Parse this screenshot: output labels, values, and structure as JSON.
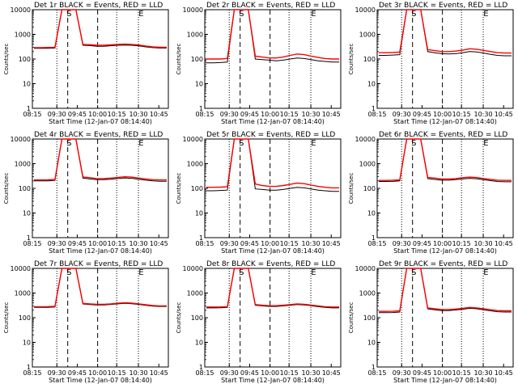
{
  "figure": {
    "colors": {
      "events": "#000000",
      "lld": "#ff0000",
      "axes": "#000000"
    }
  },
  "chart_data": [
    {
      "type": "line",
      "title": "Det 1r BLACK = Events, RED = LLD",
      "xlabel": "Start Time (12-Jan-07 08:14:40)",
      "ylabel": "Counts/sec",
      "yscale": "log",
      "ylim": [
        1,
        10000
      ],
      "xticks": [
        "08:15",
        "09:30",
        "09:45",
        "10:00",
        "10:15",
        "10:30",
        "10:45"
      ],
      "markers": [
        "S",
        "E"
      ],
      "series": [
        {
          "values": [
            270,
            270,
            272,
            280,
            10000,
            10000,
            10000,
            360,
            350,
            330,
            330,
            345,
            360,
            370,
            360,
            340,
            310,
            290,
            280,
            280
          ]
        },
        {
          "values": [
            290,
            290,
            295,
            300,
            10000,
            10000,
            10000,
            390,
            380,
            360,
            360,
            375,
            390,
            400,
            390,
            370,
            335,
            310,
            300,
            300
          ]
        }
      ]
    },
    {
      "type": "line",
      "title": "Det 2r BLACK = Events, RED = LLD",
      "xlabel": "Start Time (12-Jan-07 08:14:40)",
      "ylabel": "Counts/sec",
      "yscale": "log",
      "ylim": [
        1,
        10000
      ],
      "xticks": [
        "08:15",
        "09:30",
        "09:45",
        "10:00",
        "10:15",
        "10:30",
        "10:45"
      ],
      "markers": [
        "S",
        "E"
      ],
      "series": [
        {
          "values": [
            70,
            70,
            72,
            75,
            10000,
            10000,
            10000,
            100,
            95,
            90,
            85,
            90,
            100,
            110,
            105,
            95,
            85,
            80,
            75,
            75
          ]
        },
        {
          "values": [
            100,
            100,
            100,
            105,
            10000,
            10000,
            10000,
            130,
            120,
            110,
            110,
            120,
            140,
            160,
            150,
            130,
            115,
            105,
            100,
            100
          ]
        }
      ]
    },
    {
      "type": "line",
      "title": "Det 3r BLACK = Events, RED = LLD",
      "xlabel": "Start Time (12-Jan-07 08:14:40)",
      "ylabel": "Counts/sec",
      "yscale": "log",
      "ylim": [
        1,
        10000
      ],
      "xticks": [
        "08:15",
        "09:30",
        "09:45",
        "10:00",
        "10:15",
        "10:30",
        "10:45"
      ],
      "markers": [
        "S",
        "E"
      ],
      "series": [
        {
          "values": [
            140,
            140,
            145,
            150,
            10000,
            10000,
            10000,
            200,
            180,
            165,
            160,
            165,
            180,
            200,
            195,
            175,
            155,
            140,
            135,
            135
          ]
        },
        {
          "values": [
            180,
            180,
            185,
            190,
            10000,
            10000,
            10000,
            240,
            220,
            200,
            200,
            210,
            230,
            260,
            250,
            225,
            200,
            180,
            175,
            175
          ]
        }
      ]
    },
    {
      "type": "line",
      "title": "Det 4r BLACK = Events, RED = LLD",
      "xlabel": "Start Time (12-Jan-07 08:14:40)",
      "ylabel": "Counts/sec",
      "yscale": "log",
      "ylim": [
        1,
        10000
      ],
      "xticks": [
        "08:15",
        "09:30",
        "09:45",
        "10:00",
        "10:15",
        "10:30",
        "10:45"
      ],
      "markers": [
        "S",
        "E"
      ],
      "series": [
        {
          "values": [
            200,
            200,
            202,
            210,
            10000,
            10000,
            10000,
            260,
            240,
            225,
            225,
            235,
            250,
            265,
            255,
            235,
            215,
            200,
            195,
            195
          ]
        },
        {
          "values": [
            220,
            220,
            222,
            230,
            10000,
            10000,
            10000,
            290,
            270,
            250,
            250,
            260,
            280,
            295,
            285,
            260,
            240,
            225,
            220,
            220
          ]
        }
      ]
    },
    {
      "type": "line",
      "title": "Det 5r BLACK = Events, RED = LLD",
      "xlabel": "Start Time (12-Jan-07 08:14:40)",
      "ylabel": "Counts/sec",
      "yscale": "log",
      "ylim": [
        1,
        10000
      ],
      "xticks": [
        "08:15",
        "09:30",
        "09:45",
        "10:00",
        "10:15",
        "10:30",
        "10:45"
      ],
      "markers": [
        "S",
        "E"
      ],
      "series": [
        {
          "values": [
            80,
            80,
            82,
            85,
            10000,
            10000,
            10000,
            95,
            90,
            85,
            85,
            90,
            100,
            110,
            105,
            95,
            85,
            80,
            75,
            75
          ]
        },
        {
          "values": [
            110,
            110,
            112,
            115,
            10000,
            10000,
            10000,
            150,
            130,
            120,
            120,
            130,
            145,
            165,
            155,
            135,
            120,
            110,
            105,
            105
          ]
        }
      ]
    },
    {
      "type": "line",
      "title": "Det 6r BLACK = Events, RED = LLD",
      "xlabel": "Start Time (12-Jan-07 08:14:40)",
      "ylabel": "Counts/sec",
      "yscale": "log",
      "ylim": [
        1,
        10000
      ],
      "xticks": [
        "08:15",
        "09:30",
        "09:45",
        "10:00",
        "10:15",
        "10:30",
        "10:45"
      ],
      "markers": [
        "S",
        "E"
      ],
      "series": [
        {
          "values": [
            190,
            190,
            192,
            200,
            10000,
            10000,
            10000,
            250,
            230,
            215,
            215,
            225,
            240,
            255,
            245,
            225,
            205,
            190,
            185,
            185
          ]
        },
        {
          "values": [
            210,
            210,
            212,
            220,
            10000,
            10000,
            10000,
            280,
            260,
            240,
            240,
            250,
            270,
            285,
            275,
            250,
            230,
            215,
            210,
            210
          ]
        }
      ]
    },
    {
      "type": "line",
      "title": "Det 7r BLACK = Events, RED = LLD",
      "xlabel": "Start Time (12-Jan-07 08:14:40)",
      "ylabel": "Counts/sec",
      "yscale": "log",
      "ylim": [
        1,
        10000
      ],
      "xticks": [
        "08:15",
        "09:30",
        "09:45",
        "10:00",
        "10:15",
        "10:30",
        "10:45"
      ],
      "markers": [
        "S",
        "E"
      ],
      "series": [
        {
          "values": [
            260,
            260,
            262,
            270,
            10000,
            10000,
            10000,
            360,
            340,
            330,
            330,
            345,
            365,
            380,
            370,
            345,
            315,
            295,
            285,
            285
          ]
        },
        {
          "values": [
            280,
            280,
            282,
            290,
            10000,
            10000,
            10000,
            380,
            360,
            350,
            350,
            365,
            385,
            400,
            390,
            365,
            335,
            310,
            300,
            300
          ]
        }
      ]
    },
    {
      "type": "line",
      "title": "Det 8r BLACK = Events, RED = LLD",
      "xlabel": "Start Time (12-Jan-07 08:14:40)",
      "ylabel": "Counts/sec",
      "yscale": "log",
      "ylim": [
        1,
        10000
      ],
      "xticks": [
        "08:15",
        "09:30",
        "09:45",
        "10:00",
        "10:15",
        "10:30",
        "10:45"
      ],
      "markers": [
        "S",
        "E"
      ],
      "series": [
        {
          "values": [
            250,
            250,
            252,
            260,
            10000,
            10000,
            10000,
            320,
            300,
            285,
            285,
            300,
            320,
            340,
            330,
            305,
            280,
            260,
            250,
            250
          ]
        },
        {
          "values": [
            270,
            270,
            272,
            280,
            10000,
            10000,
            10000,
            340,
            320,
            305,
            305,
            320,
            340,
            360,
            350,
            325,
            300,
            280,
            270,
            270
          ]
        }
      ]
    },
    {
      "type": "line",
      "title": "Det 9r BLACK = Events, RED = LLD",
      "xlabel": "Start Time (12-Jan-07 08:14:40)",
      "ylabel": "Counts/sec",
      "yscale": "log",
      "ylim": [
        1,
        10000
      ],
      "xticks": [
        "08:15",
        "09:30",
        "09:45",
        "10:00",
        "10:15",
        "10:30",
        "10:45"
      ],
      "markers": [
        "S",
        "E"
      ],
      "series": [
        {
          "values": [
            160,
            160,
            162,
            170,
            10000,
            10000,
            10000,
            230,
            210,
            195,
            195,
            205,
            220,
            240,
            230,
            210,
            190,
            175,
            170,
            170
          ]
        },
        {
          "values": [
            180,
            180,
            182,
            190,
            10000,
            10000,
            10000,
            250,
            230,
            215,
            215,
            225,
            240,
            260,
            250,
            230,
            210,
            195,
            190,
            190
          ]
        }
      ]
    }
  ]
}
